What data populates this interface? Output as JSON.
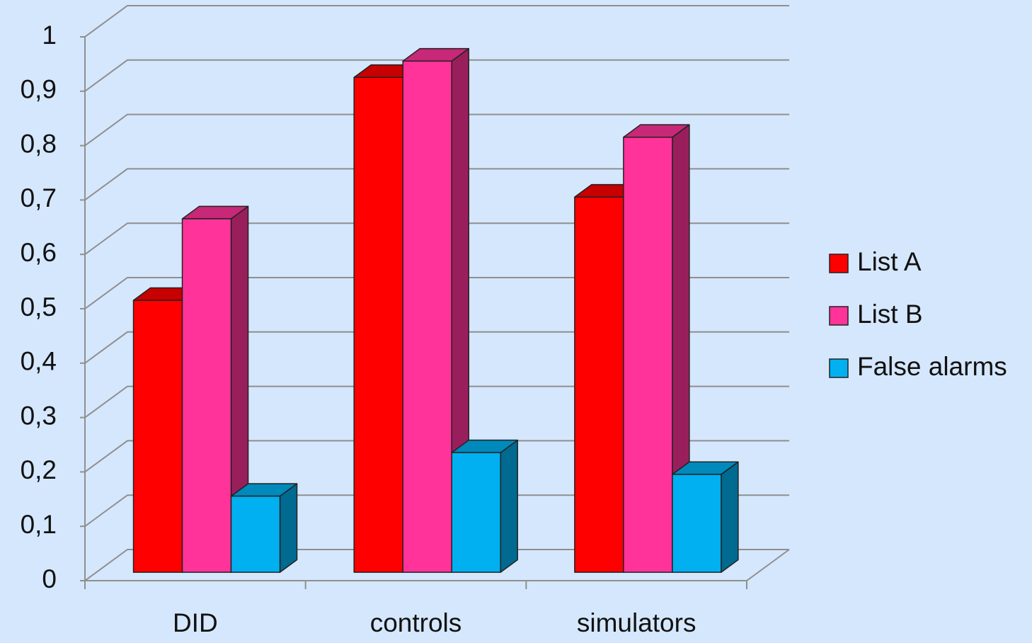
{
  "chart_data": {
    "type": "bar3d",
    "categories": [
      "DID",
      "controls",
      "simulators"
    ],
    "series": [
      {
        "name": "List A",
        "color": "#ff0000",
        "values": [
          0.5,
          0.91,
          0.69
        ]
      },
      {
        "name": "List B",
        "color": "#ff3399",
        "values": [
          0.65,
          0.94,
          0.8
        ]
      },
      {
        "name": "False alarms",
        "color": "#00b0f0",
        "values": [
          0.14,
          0.22,
          0.18
        ]
      }
    ],
    "ylim": [
      0,
      1
    ],
    "yticks": [
      0,
      {
        "value": 0.1,
        "label": "0,1"
      },
      {
        "value": 0.2,
        "label": "0,2"
      },
      {
        "value": 0.3,
        "label": "0,3"
      },
      {
        "value": 0.4,
        "label": "0,4"
      },
      {
        "value": 0.5,
        "label": "0,5"
      },
      {
        "value": 0.6,
        "label": "0,6"
      },
      {
        "value": 0.7,
        "label": "0,7"
      },
      {
        "value": 0.8,
        "label": "0,8"
      },
      {
        "value": 0.9,
        "label": "0,9"
      },
      1
    ],
    "grid": true,
    "legend": "right"
  }
}
